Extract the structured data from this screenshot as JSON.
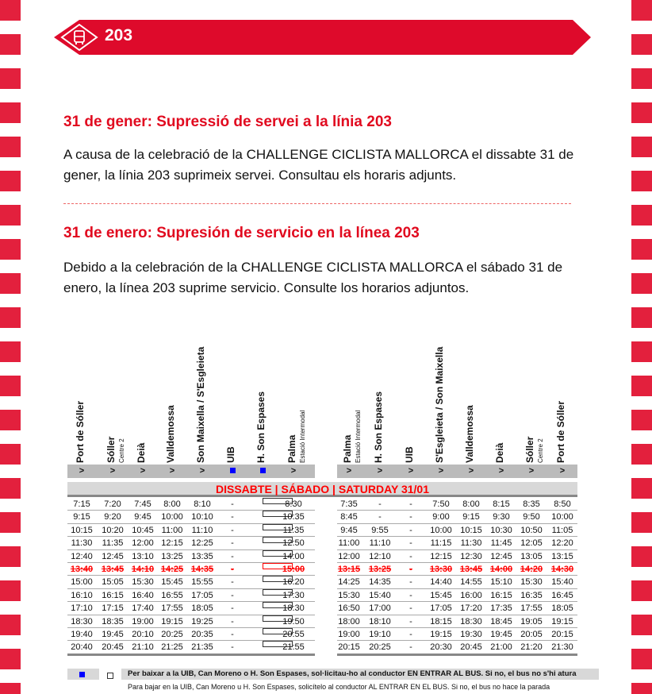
{
  "header": {
    "line_number": "203",
    "icon": "bus-icon"
  },
  "notice_ca": {
    "title": "31 de gener: Supressió de servei a la línia 203",
    "body": "A causa de la celebració de la CHALLENGE CICLISTA MALLORCA el dissabte 31 de gener, la línia 203 suprimeix servei. Consultau els horaris adjunts."
  },
  "notice_es": {
    "title": "31 de enero: Supresión de servicio en la línea 203",
    "body": "Debido a la celebración de la CHALLENGE CICLISTA MALLORCA el sábado 31 de enero, la línea 203 suprime servicio. Consulte los horarios adjuntos."
  },
  "timetable": {
    "day_label": "DISSABTE | SÁBADO | SATURDAY 31/01",
    "outbound": {
      "stops": [
        {
          "name": "Port de Sóller",
          "sub": "",
          "marker": ">"
        },
        {
          "name": "Sóller",
          "sub": "Centre 2",
          "marker": ">"
        },
        {
          "name": "Deià",
          "sub": "",
          "marker": ">"
        },
        {
          "name": "Valldemossa",
          "sub": "",
          "marker": ">"
        },
        {
          "name": "Son Maixella / S'Esgleieta",
          "sub": "",
          "marker": ">"
        },
        {
          "name": "UIB",
          "sub": "",
          "marker": "request"
        },
        {
          "name": "H. Son Espases",
          "sub": "",
          "marker": "request"
        },
        {
          "name": "Palma",
          "sub": "Estació Intermodal",
          "marker": ">"
        }
      ],
      "rows": [
        {
          "t": [
            "7:15",
            "7:20",
            "7:45",
            "8:00",
            "8:10",
            "-",
            "□",
            "8:30"
          ],
          "cancelled": false
        },
        {
          "t": [
            "9:15",
            "9:20",
            "9:45",
            "10:00",
            "10:10",
            "-",
            "□",
            "10:35"
          ],
          "cancelled": false
        },
        {
          "t": [
            "10:15",
            "10:20",
            "10:45",
            "11:00",
            "11:10",
            "-",
            "□",
            "11:35"
          ],
          "cancelled": false
        },
        {
          "t": [
            "11:30",
            "11:35",
            "12:00",
            "12:15",
            "12:25",
            "-",
            "□",
            "12:50"
          ],
          "cancelled": false
        },
        {
          "t": [
            "12:40",
            "12:45",
            "13:10",
            "13:25",
            "13:35",
            "-",
            "□",
            "14:00"
          ],
          "cancelled": false
        },
        {
          "t": [
            "13:40",
            "13:45",
            "14:10",
            "14:25",
            "14:35",
            "-",
            "□",
            "15:00"
          ],
          "cancelled": true
        },
        {
          "t": [
            "15:00",
            "15:05",
            "15:30",
            "15:45",
            "15:55",
            "-",
            "□",
            "16:20"
          ],
          "cancelled": false
        },
        {
          "t": [
            "16:10",
            "16:15",
            "16:40",
            "16:55",
            "17:05",
            "-",
            "□",
            "17:30"
          ],
          "cancelled": false
        },
        {
          "t": [
            "17:10",
            "17:15",
            "17:40",
            "17:55",
            "18:05",
            "-",
            "□",
            "18:30"
          ],
          "cancelled": false
        },
        {
          "t": [
            "18:30",
            "18:35",
            "19:00",
            "19:15",
            "19:25",
            "-",
            "□",
            "19:50"
          ],
          "cancelled": false
        },
        {
          "t": [
            "19:40",
            "19:45",
            "20:10",
            "20:25",
            "20:35",
            "-",
            "□",
            "20:55"
          ],
          "cancelled": false
        },
        {
          "t": [
            "20:40",
            "20:45",
            "21:10",
            "21:25",
            "21:35",
            "-",
            "□",
            "21:55"
          ],
          "cancelled": false
        }
      ]
    },
    "inbound": {
      "stops": [
        {
          "name": "Palma",
          "sub": "Estació Intermodal",
          "marker": ">"
        },
        {
          "name": "H. Son Espases",
          "sub": "",
          "marker": ">"
        },
        {
          "name": "UIB",
          "sub": "",
          "marker": ">"
        },
        {
          "name": "S'Esgleieta / Son Maixella",
          "sub": "",
          "marker": ">"
        },
        {
          "name": "Valldemossa",
          "sub": "",
          "marker": ">"
        },
        {
          "name": "Deià",
          "sub": "",
          "marker": ">"
        },
        {
          "name": "Sóller",
          "sub": "Centre 2",
          "marker": ">"
        },
        {
          "name": "Port de Sóller",
          "sub": "",
          "marker": ">"
        }
      ],
      "rows": [
        {
          "t": [
            "7:35",
            "-",
            "-",
            "7:50",
            "8:00",
            "8:15",
            "8:35",
            "8:50"
          ],
          "cancelled": false
        },
        {
          "t": [
            "8:45",
            "-",
            "-",
            "9:00",
            "9:15",
            "9:30",
            "9:50",
            "10:00"
          ],
          "cancelled": false
        },
        {
          "t": [
            "9:45",
            "9:55",
            "-",
            "10:00",
            "10:15",
            "10:30",
            "10:50",
            "11:05"
          ],
          "cancelled": false
        },
        {
          "t": [
            "11:00",
            "11:10",
            "-",
            "11:15",
            "11:30",
            "11:45",
            "12:05",
            "12:20"
          ],
          "cancelled": false
        },
        {
          "t": [
            "12:00",
            "12:10",
            "-",
            "12:15",
            "12:30",
            "12:45",
            "13:05",
            "13:15"
          ],
          "cancelled": false
        },
        {
          "t": [
            "13:15",
            "13:25",
            "-",
            "13:30",
            "13:45",
            "14:00",
            "14:20",
            "14:30"
          ],
          "cancelled": true
        },
        {
          "t": [
            "14:25",
            "14:35",
            "-",
            "14:40",
            "14:55",
            "15:10",
            "15:30",
            "15:40"
          ],
          "cancelled": false
        },
        {
          "t": [
            "15:30",
            "15:40",
            "-",
            "15:45",
            "16:00",
            "16:15",
            "16:35",
            "16:45"
          ],
          "cancelled": false
        },
        {
          "t": [
            "16:50",
            "17:00",
            "-",
            "17:05",
            "17:20",
            "17:35",
            "17:55",
            "18:05"
          ],
          "cancelled": false
        },
        {
          "t": [
            "18:00",
            "18:10",
            "-",
            "18:15",
            "18:30",
            "18:45",
            "19:05",
            "19:15"
          ],
          "cancelled": false
        },
        {
          "t": [
            "19:00",
            "19:10",
            "-",
            "19:15",
            "19:30",
            "19:45",
            "20:05",
            "20:15"
          ],
          "cancelled": false
        },
        {
          "t": [
            "20:15",
            "20:25",
            "-",
            "20:30",
            "20:45",
            "21:00",
            "21:20",
            "21:30"
          ],
          "cancelled": false
        }
      ]
    }
  },
  "legend": {
    "box_symbol": "□",
    "text_ca": "Per baixar a la UIB, Can Moreno o H. Son Espases, sol·licitau-ho al conductor EN ENTRAR AL BUS. Si no, el bus no s'hi atura",
    "text_es": "Para bajar en la UIB, Can Moreno u H. Son Espases, solicítelo al conductor AL ENTRAR EN EL BUS. Si no, el bus no hace la parada"
  },
  "colors": {
    "brand_red": "#de0a2b",
    "stripe_red": "#e3203d",
    "cancel_red": "#ff0000",
    "request_blue": "#0000ff"
  }
}
